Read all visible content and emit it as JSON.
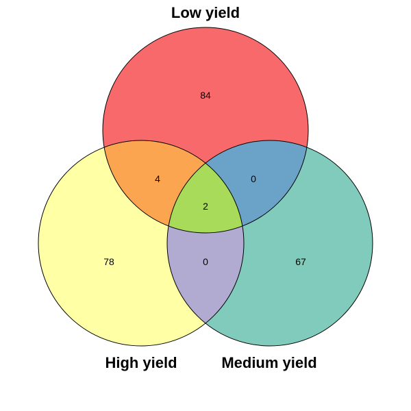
{
  "sets": {
    "low": {
      "label": "Low yield",
      "color": "#F8696B"
    },
    "high": {
      "label": "High yield",
      "color": "#FFFFA5"
    },
    "medium": {
      "label": "Medium yield",
      "color": "#80CBBC"
    }
  },
  "regions": {
    "low_only": {
      "count": "84",
      "color": "#F8696B"
    },
    "high_only": {
      "count": "78",
      "color": "#FFFFA5"
    },
    "medium_only": {
      "count": "67",
      "color": "#80CBBC"
    },
    "low_high": {
      "count": "4",
      "color": "#FCA550"
    },
    "low_medium": {
      "count": "0",
      "color": "#6BA3C8"
    },
    "high_medium": {
      "count": "0",
      "color": "#B1ABD1"
    },
    "low_high_medium": {
      "count": "2",
      "color": "#A8DB5A"
    }
  }
}
